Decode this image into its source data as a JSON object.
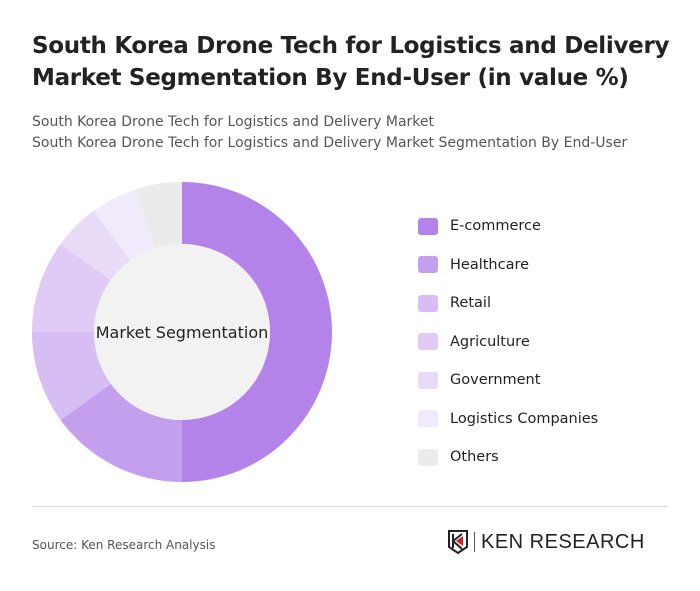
{
  "title": "South Korea Drone Tech for Logistics and Delivery Market Segmentation By End-User (in value %)",
  "subtitle1": "South Korea Drone Tech for Logistics and Delivery Market",
  "subtitle2": "South Korea Drone Tech for Logistics and Delivery Market Segmentation By End-User",
  "source": "Source: Ken Research Analysis",
  "logo_text": "KEN RESEARCH",
  "chart_data": {
    "type": "pie",
    "donut": true,
    "center_label": "Market Segmentation",
    "legend_position": "right",
    "categories": [
      "E-commerce",
      "Healthcare",
      "Retail",
      "Agriculture",
      "Government",
      "Logistics Companies",
      "Others"
    ],
    "values": [
      50,
      15,
      10,
      10,
      5,
      5,
      5
    ],
    "colors": [
      "#b383ea",
      "#c49fee",
      "#d6bdf4",
      "#dfcbf5",
      "#e8dbf8",
      "#f1eafb",
      "#ebebeb"
    ]
  }
}
